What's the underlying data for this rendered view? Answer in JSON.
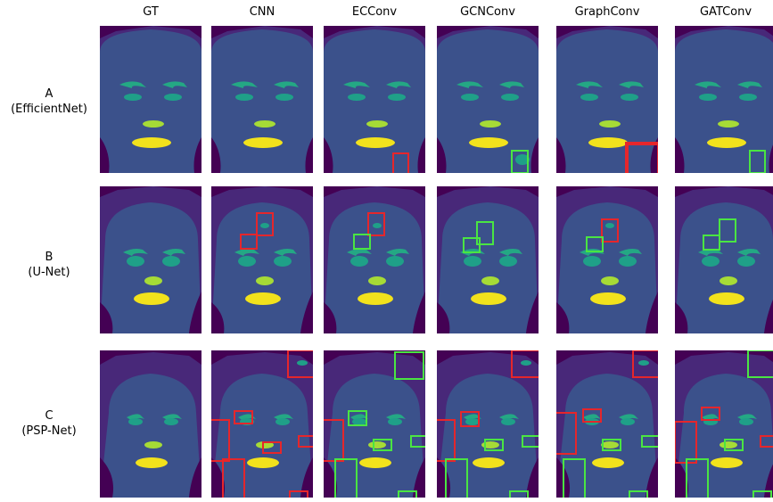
{
  "columns": [
    "GT",
    "CNN",
    "ECConv",
    "GCNConv",
    "GraphConv",
    "GATConv"
  ],
  "rows": [
    {
      "letter": "A",
      "name": "(EfficientNet)"
    },
    {
      "letter": "B",
      "name": "(U-Net)"
    },
    {
      "letter": "C",
      "name": "(PSP-Net)"
    }
  ],
  "colors": {
    "background": "#440154",
    "hair": "#482879",
    "face": "#3b518b",
    "brows": "#24a884",
    "eyes": "#1fa088",
    "nose": "#a6db36",
    "mouth": "#f2e21c",
    "error_box": "#e6262b",
    "correct_box": "#4ae542"
  }
}
